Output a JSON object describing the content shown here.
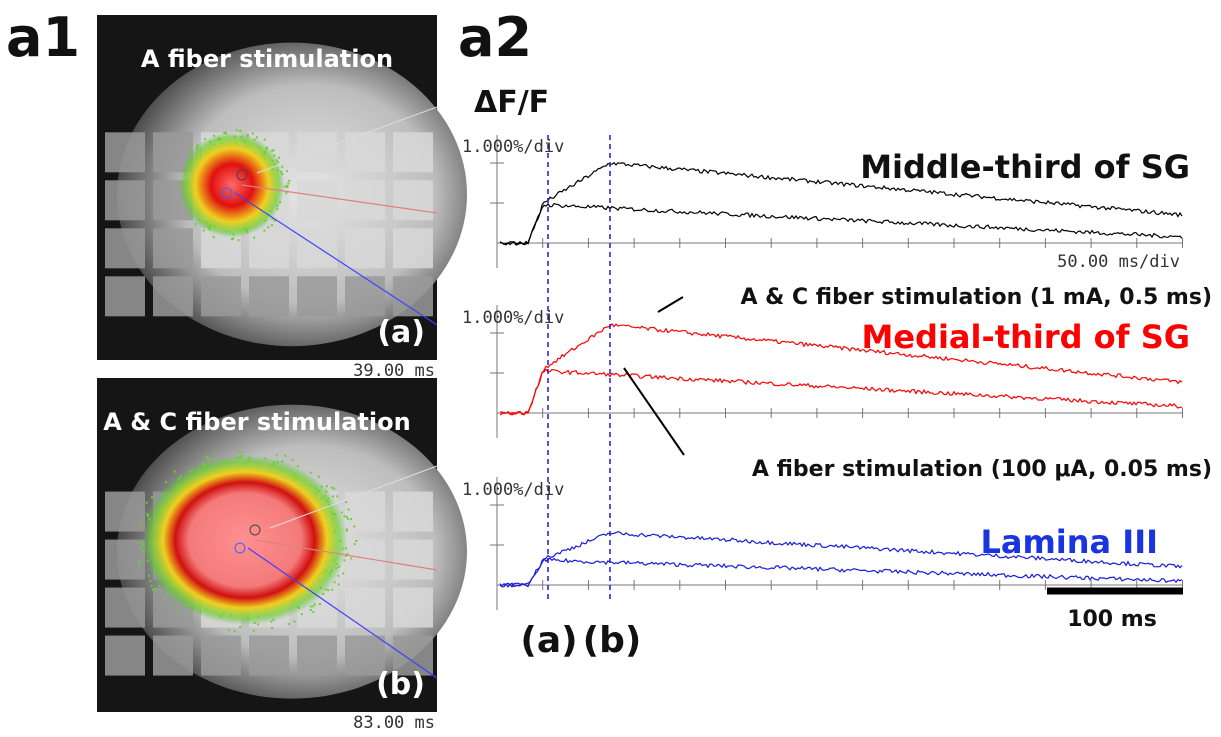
{
  "panel_a1": {
    "label": "a1",
    "images": [
      {
        "title": "A fiber stimulation",
        "marker": "(a)",
        "time": "39.00 ms"
      },
      {
        "title": "A & C fiber stimulation",
        "marker": "(b)",
        "time": "83.00 ms"
      }
    ]
  },
  "panel_a2": {
    "label": "a2",
    "y_label": "ΔF/F",
    "traces": [
      {
        "name": "Middle-third of SG",
        "y_scale": "1.000%/div",
        "x_scale": "50.00 ms/div"
      },
      {
        "name": "Medial-third of SG",
        "y_scale": "1.000%/div"
      },
      {
        "name": "Lamina III",
        "y_scale": "1.000%/div"
      }
    ],
    "annotations": [
      "A & C fiber stimulation (1 mA, 0.5 ms)",
      "A fiber stimulation (100 μA, 0.05 ms)"
    ],
    "scale_bar": "100 ms",
    "time_markers": [
      "(a)",
      "(b)"
    ]
  }
}
